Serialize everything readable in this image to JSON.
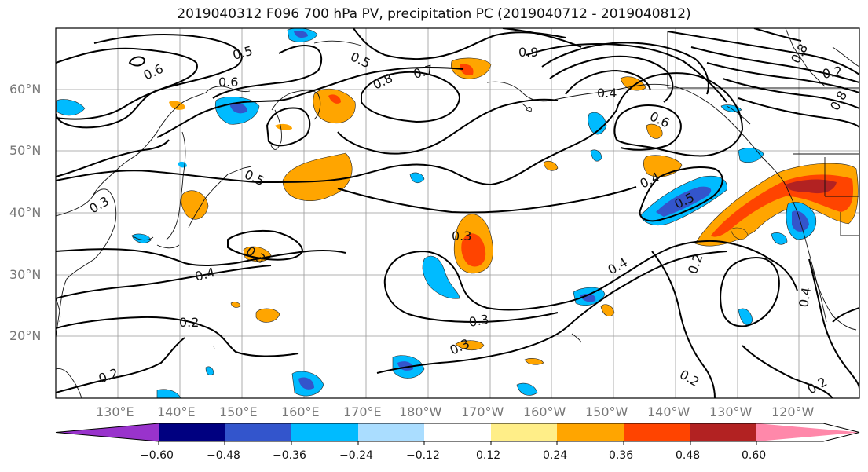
{
  "title": "2019040312 F096 700 hPa PV, precipitation PC (2019040712 - 2019040812)",
  "lat_labels": [
    "60°N",
    "50°N",
    "40°N",
    "30°N",
    "20°N"
  ],
  "lon_labels": [
    "130°E",
    "140°E",
    "150°E",
    "160°E",
    "170°E",
    "180°W",
    "170°W",
    "160°W",
    "150°W",
    "140°W",
    "130°W",
    "120°W"
  ],
  "colorbar": {
    "colors": [
      "#9933cc",
      "#000080",
      "#3355cc",
      "#00bbff",
      "#aaddff",
      "#ffffff",
      "#ffee88",
      "#ffa500",
      "#ff4400",
      "#b22222",
      "#ff88aa"
    ],
    "tick_labels": [
      "−0.60",
      "−0.48",
      "−0.36",
      "−0.24",
      "−0.12",
      "0.12",
      "0.24",
      "0.36",
      "0.48",
      "0.60"
    ]
  },
  "contour_labels": [
    "0.5",
    "0.6",
    "0.5",
    "0.8",
    "0.7",
    "0.9",
    "0.6",
    "0.4",
    "0.6",
    "0.5",
    "0.4",
    "0.5",
    "0.3",
    "0.3",
    "0.3",
    "0.4",
    "0.4",
    "0.2",
    "0.2",
    "0.3",
    "0.3",
    "0.2",
    "0.2",
    "0.4",
    "0.2",
    "0.2",
    "0.8",
    "0.8",
    "0.6"
  ]
}
